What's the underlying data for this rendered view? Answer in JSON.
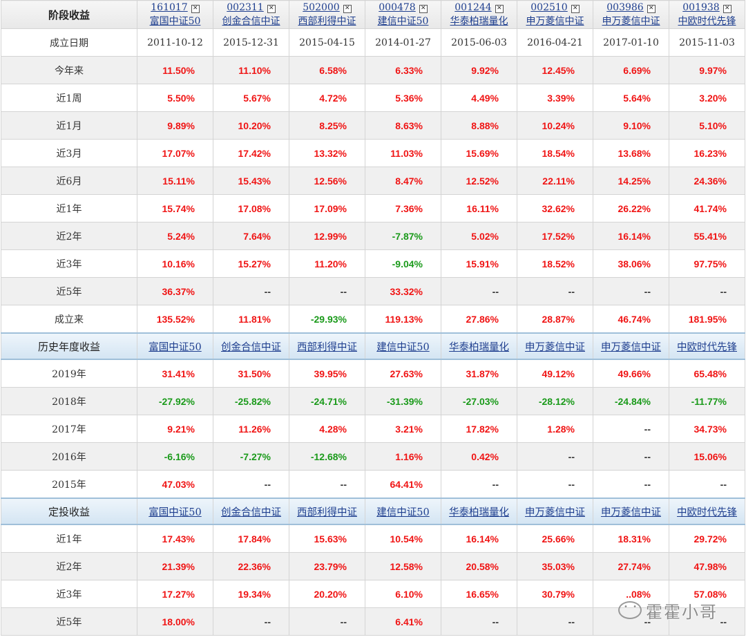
{
  "funds": [
    {
      "code": "161017",
      "name": "富国中证50",
      "inception": "2011-10-12"
    },
    {
      "code": "002311",
      "name": "创金合信中证",
      "inception": "2015-12-31"
    },
    {
      "code": "502000",
      "name": "西部利得中证",
      "inception": "2015-04-15"
    },
    {
      "code": "000478",
      "name": "建信中证50",
      "inception": "2014-01-27"
    },
    {
      "code": "001244",
      "name": "华泰柏瑞量化",
      "inception": "2015-06-03"
    },
    {
      "code": "002510",
      "name": "申万菱信中证",
      "inception": "2016-04-21"
    },
    {
      "code": "003986",
      "name": "申万菱信中证",
      "inception": "2017-01-10"
    },
    {
      "code": "001938",
      "name": "中欧时代先锋",
      "inception": "2015-11-03"
    }
  ],
  "remove_icon": "✕",
  "stage_returns": {
    "title": "阶段收益",
    "inception_label": "成立日期",
    "rows": [
      {
        "label": "今年来",
        "values": [
          "11.50%",
          "11.10%",
          "6.58%",
          "6.33%",
          "9.92%",
          "12.45%",
          "6.69%",
          "9.97%"
        ]
      },
      {
        "label": "近1周",
        "values": [
          "5.50%",
          "5.67%",
          "4.72%",
          "5.36%",
          "4.49%",
          "3.39%",
          "5.64%",
          "3.20%"
        ]
      },
      {
        "label": "近1月",
        "values": [
          "9.89%",
          "10.20%",
          "8.25%",
          "8.63%",
          "8.88%",
          "10.24%",
          "9.10%",
          "5.10%"
        ]
      },
      {
        "label": "近3月",
        "values": [
          "17.07%",
          "17.42%",
          "13.32%",
          "11.03%",
          "15.69%",
          "18.54%",
          "13.68%",
          "16.23%"
        ]
      },
      {
        "label": "近6月",
        "values": [
          "15.11%",
          "15.43%",
          "12.56%",
          "8.47%",
          "12.52%",
          "22.11%",
          "14.25%",
          "24.36%"
        ]
      },
      {
        "label": "近1年",
        "values": [
          "15.74%",
          "17.08%",
          "17.09%",
          "7.36%",
          "16.11%",
          "32.62%",
          "26.22%",
          "41.74%"
        ]
      },
      {
        "label": "近2年",
        "values": [
          "5.24%",
          "7.64%",
          "12.99%",
          "-7.87%",
          "5.02%",
          "17.52%",
          "16.14%",
          "55.41%"
        ]
      },
      {
        "label": "近3年",
        "values": [
          "10.16%",
          "15.27%",
          "11.20%",
          "-9.04%",
          "15.91%",
          "18.52%",
          "38.06%",
          "97.75%"
        ]
      },
      {
        "label": "近5年",
        "values": [
          "36.37%",
          "--",
          "--",
          "33.32%",
          "--",
          "--",
          "--",
          "--"
        ]
      },
      {
        "label": "成立来",
        "values": [
          "135.52%",
          "11.81%",
          "-29.93%",
          "119.13%",
          "27.86%",
          "28.87%",
          "46.74%",
          "181.95%"
        ]
      }
    ]
  },
  "annual_returns": {
    "title": "历史年度收益",
    "rows": [
      {
        "label": "2019年",
        "values": [
          "31.41%",
          "31.50%",
          "39.95%",
          "27.63%",
          "31.87%",
          "49.12%",
          "49.66%",
          "65.48%"
        ]
      },
      {
        "label": "2018年",
        "values": [
          "-27.92%",
          "-25.82%",
          "-24.71%",
          "-31.39%",
          "-27.03%",
          "-28.12%",
          "-24.84%",
          "-11.77%"
        ]
      },
      {
        "label": "2017年",
        "values": [
          "9.21%",
          "11.26%",
          "4.28%",
          "3.21%",
          "17.82%",
          "1.28%",
          "--",
          "34.73%"
        ]
      },
      {
        "label": "2016年",
        "values": [
          "-6.16%",
          "-7.27%",
          "-12.68%",
          "1.16%",
          "0.42%",
          "--",
          "--",
          "15.06%"
        ]
      },
      {
        "label": "2015年",
        "values": [
          "47.03%",
          "--",
          "--",
          "64.41%",
          "--",
          "--",
          "--",
          "--"
        ]
      }
    ]
  },
  "sip_returns": {
    "title": "定投收益",
    "rows": [
      {
        "label": "近1年",
        "values": [
          "17.43%",
          "17.84%",
          "15.63%",
          "10.54%",
          "16.14%",
          "25.66%",
          "18.31%",
          "29.72%"
        ]
      },
      {
        "label": "近2年",
        "values": [
          "21.39%",
          "22.36%",
          "23.79%",
          "12.58%",
          "20.58%",
          "35.03%",
          "27.74%",
          "47.98%"
        ]
      },
      {
        "label": "近3年",
        "values": [
          "17.27%",
          "19.34%",
          "20.20%",
          "6.10%",
          "16.65%",
          "30.79%",
          "..08%",
          "57.08%"
        ]
      },
      {
        "label": "近5年",
        "values": [
          "18.00%",
          "--",
          "--",
          "6.41%",
          "--",
          "--",
          "--",
          "--"
        ]
      }
    ]
  },
  "colors": {
    "positive": "#f01414",
    "negative": "#1a9a1a",
    "link": "#1f3f8f",
    "section_bg": "#d4e5f3"
  },
  "watermark": {
    "text": "霍霍小哥",
    "icon": "wechat-icon"
  }
}
